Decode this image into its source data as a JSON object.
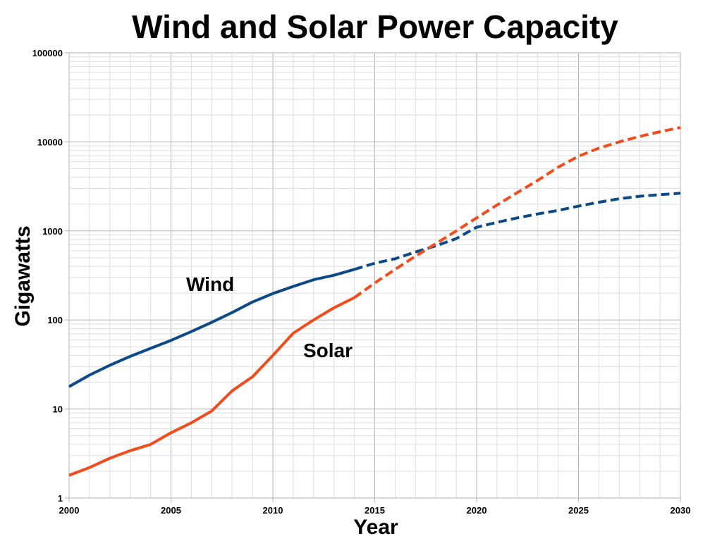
{
  "chart_data": {
    "type": "line",
    "title": "Wind and Solar Power Capacity",
    "xlabel": "Year",
    "ylabel": "Gigawatts",
    "xlim": [
      2000,
      2030
    ],
    "ylim": [
      1,
      100000
    ],
    "yscale": "log",
    "grid": true,
    "xticks": [
      "2000",
      "2005",
      "2010",
      "2015",
      "2020",
      "2025",
      "2030"
    ],
    "yticks": [
      "1",
      "10",
      "100",
      "1000",
      "10000",
      "100000"
    ],
    "projection_start_year": 2014,
    "x": [
      2000,
      2001,
      2002,
      2003,
      2004,
      2005,
      2006,
      2007,
      2008,
      2009,
      2010,
      2011,
      2012,
      2013,
      2014,
      2015,
      2016,
      2017,
      2018,
      2019,
      2020,
      2021,
      2022,
      2023,
      2024,
      2025,
      2026,
      2027,
      2028,
      2029,
      2030
    ],
    "series": [
      {
        "name": "Wind",
        "color": "#0b4a86",
        "values": [
          17.8,
          24,
          31,
          39,
          48,
          59,
          74,
          94,
          121,
          159,
          198,
          238,
          283,
          318,
          370,
          433,
          487,
          580,
          680,
          820,
          1100,
          1250,
          1400,
          1550,
          1700,
          1900,
          2100,
          2300,
          2450,
          2550,
          2650
        ]
      },
      {
        "name": "Solar",
        "color": "#f24b1c",
        "values": [
          1.8,
          2.2,
          2.8,
          3.4,
          4.0,
          5.4,
          7.0,
          9.5,
          16,
          23,
          40,
          71,
          100,
          137,
          178,
          260,
          370,
          520,
          720,
          1000,
          1400,
          1950,
          2700,
          3700,
          5200,
          6900,
          8500,
          10000,
          11500,
          13000,
          14500
        ]
      }
    ]
  }
}
